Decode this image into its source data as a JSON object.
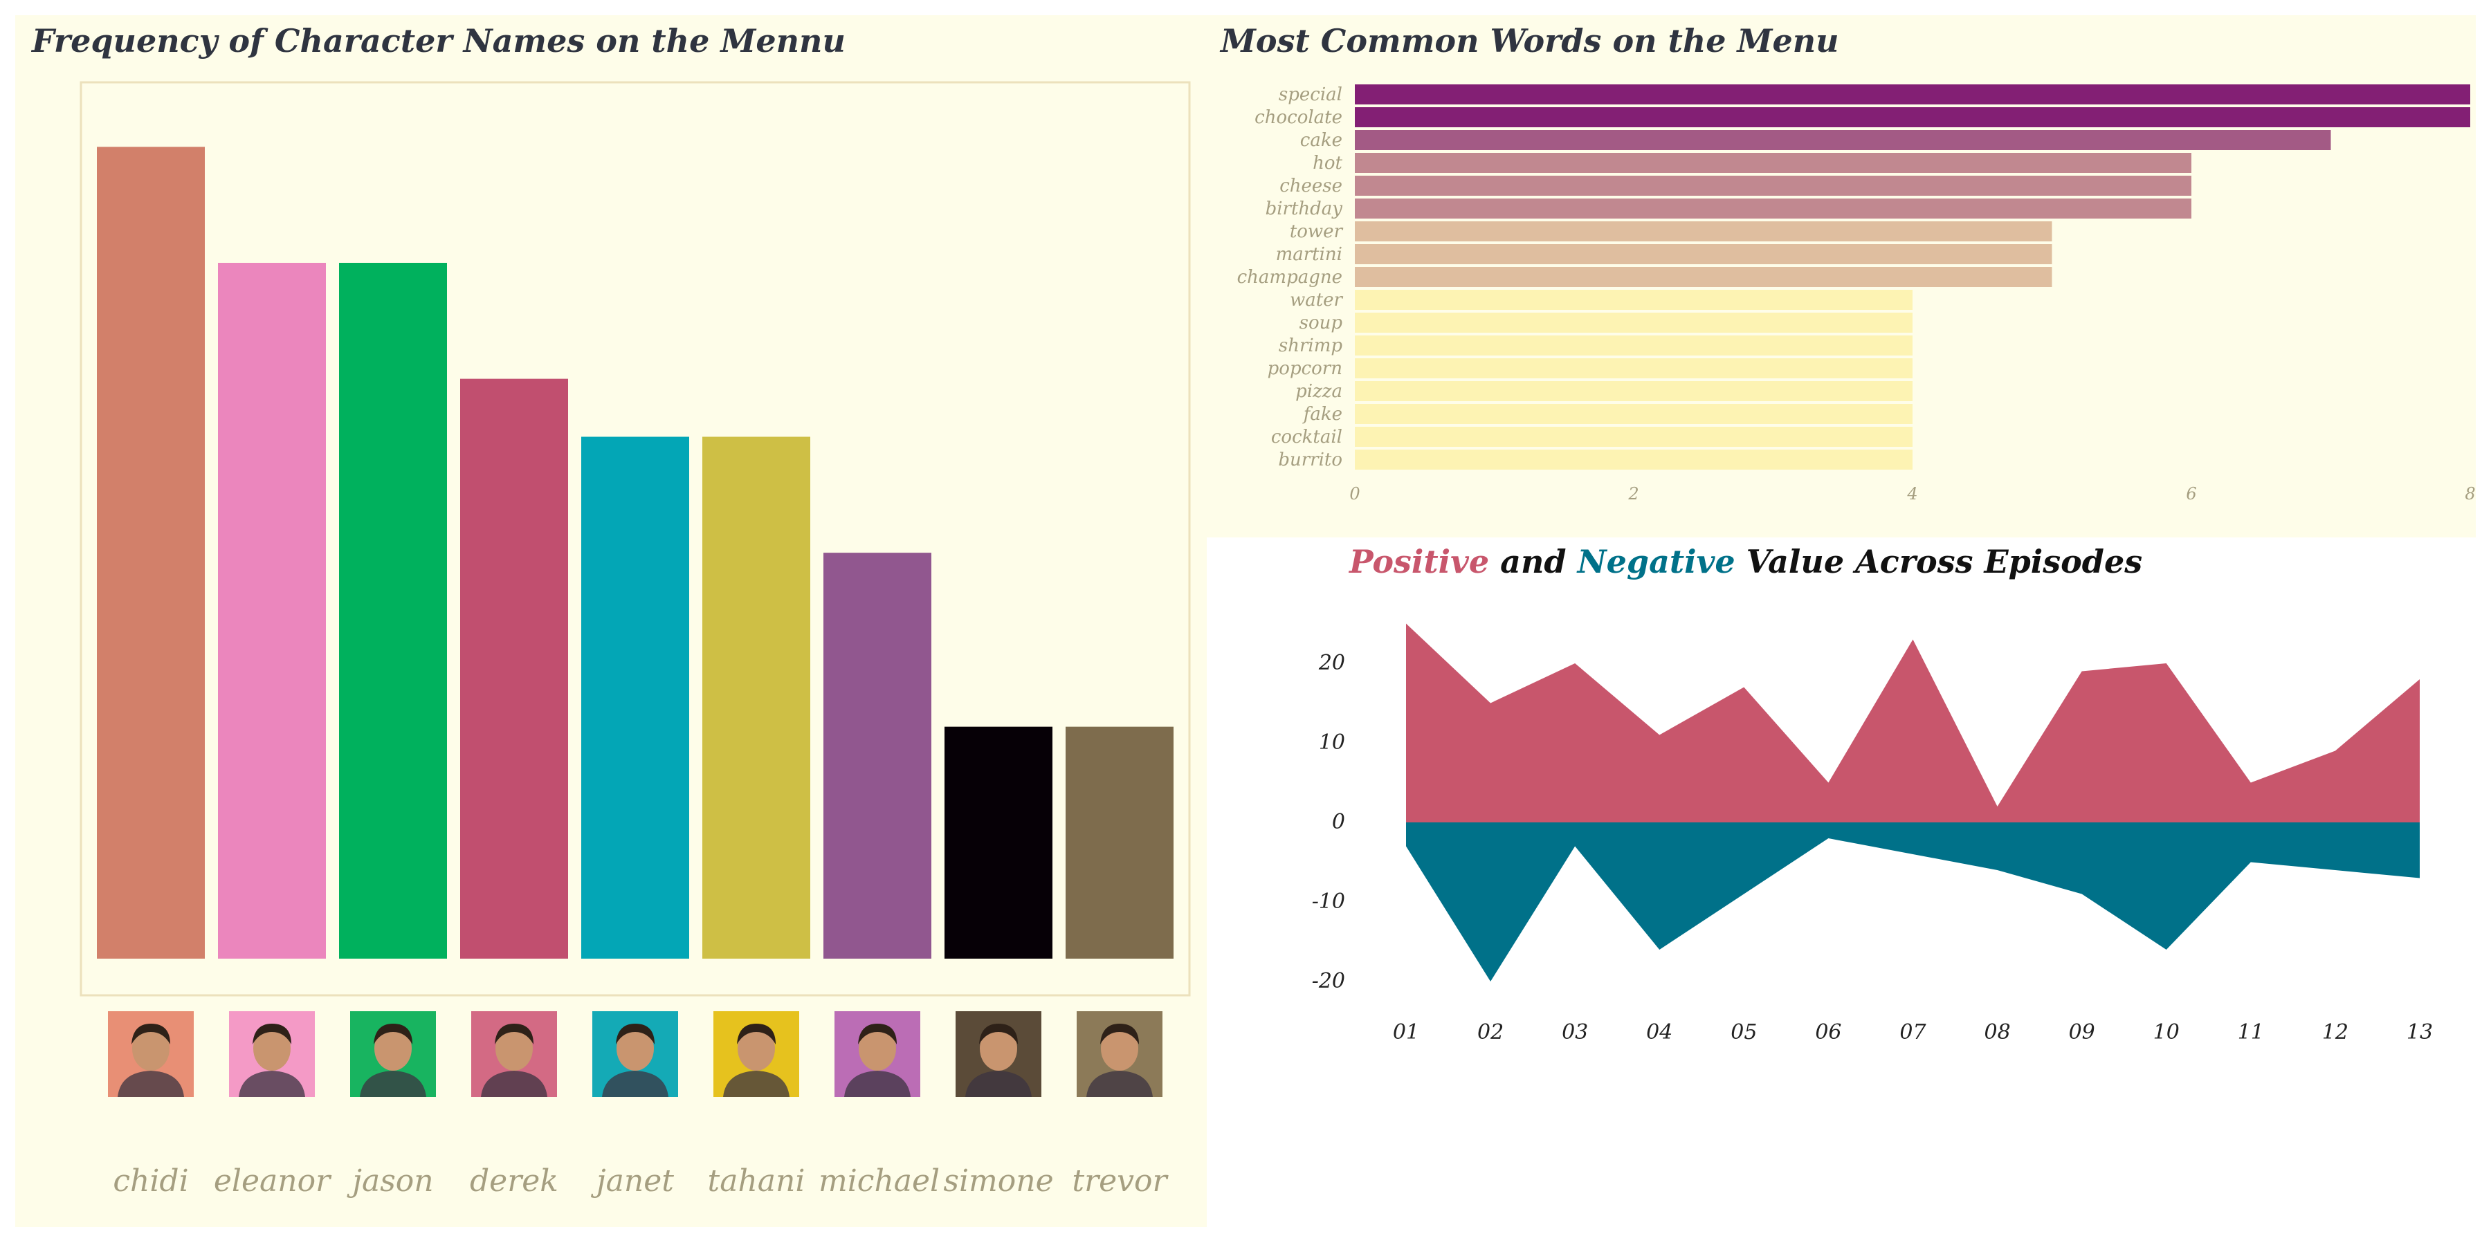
{
  "chart_data": [
    {
      "type": "bar",
      "title": "Frequency of Character Names on the Mennu",
      "categories": [
        "chidi",
        "eleanor",
        "jason",
        "derek",
        "janet",
        "tahani",
        "michael",
        "simone",
        "trevor"
      ],
      "values": [
        7,
        6,
        6,
        5,
        4.5,
        4.5,
        3.5,
        2,
        2
      ],
      "colors": [
        "#d2806a",
        "#eb86bd",
        "#00b15d",
        "#c14f6f",
        "#03a6b6",
        "#cebf45",
        "#91578f",
        "#060006",
        "#7e6c4d"
      ],
      "avatar_bg": [
        "#e88f75",
        "#f49ac6",
        "#18b460",
        "#d36a84",
        "#14aab6",
        "#e6c21e",
        "#bb6db5",
        "#5b4b38",
        "#8c7a58"
      ],
      "ylim": [
        0,
        7.3
      ],
      "grid": false
    },
    {
      "type": "bar",
      "orientation": "horizontal",
      "title": "Most Common Words on the Menu",
      "categories": [
        "special",
        "chocolate",
        "cake",
        "hot",
        "cheese",
        "birthday",
        "tower",
        "martini",
        "champagne",
        "water",
        "soup",
        "shrimp",
        "popcorn",
        "pizza",
        "fake",
        "cocktail",
        "burrito"
      ],
      "values": [
        8,
        8,
        7,
        6,
        6,
        6,
        5,
        5,
        5,
        4,
        4,
        4,
        4,
        4,
        4,
        4,
        4
      ],
      "xticks": [
        "0",
        "2",
        "4",
        "6",
        "8"
      ],
      "xlim": [
        0,
        8
      ]
    },
    {
      "type": "area",
      "title": "Positive and Negative Value Across Episodes",
      "title_parts": {
        "positive": "Positive",
        "and": "and",
        "negative": "Negative",
        "rest": "Value Across Episodes"
      },
      "x": [
        "01",
        "02",
        "03",
        "04",
        "05",
        "06",
        "07",
        "08",
        "09",
        "10",
        "11",
        "12",
        "13"
      ],
      "series": [
        {
          "name": "Positive",
          "values": [
            25,
            15,
            20,
            11,
            17,
            5,
            23,
            2,
            19,
            20,
            5,
            9,
            18
          ],
          "color": "#c8566c"
        },
        {
          "name": "Negative",
          "values": [
            -3,
            -20,
            -3,
            -16,
            -9,
            -2,
            -4,
            -6,
            -9,
            -16,
            -5,
            -6,
            -7
          ],
          "color": "#007189"
        }
      ],
      "yticks": [
        "20",
        "10",
        "0",
        "-10",
        "-20"
      ],
      "ylim": [
        -22,
        27
      ]
    }
  ]
}
